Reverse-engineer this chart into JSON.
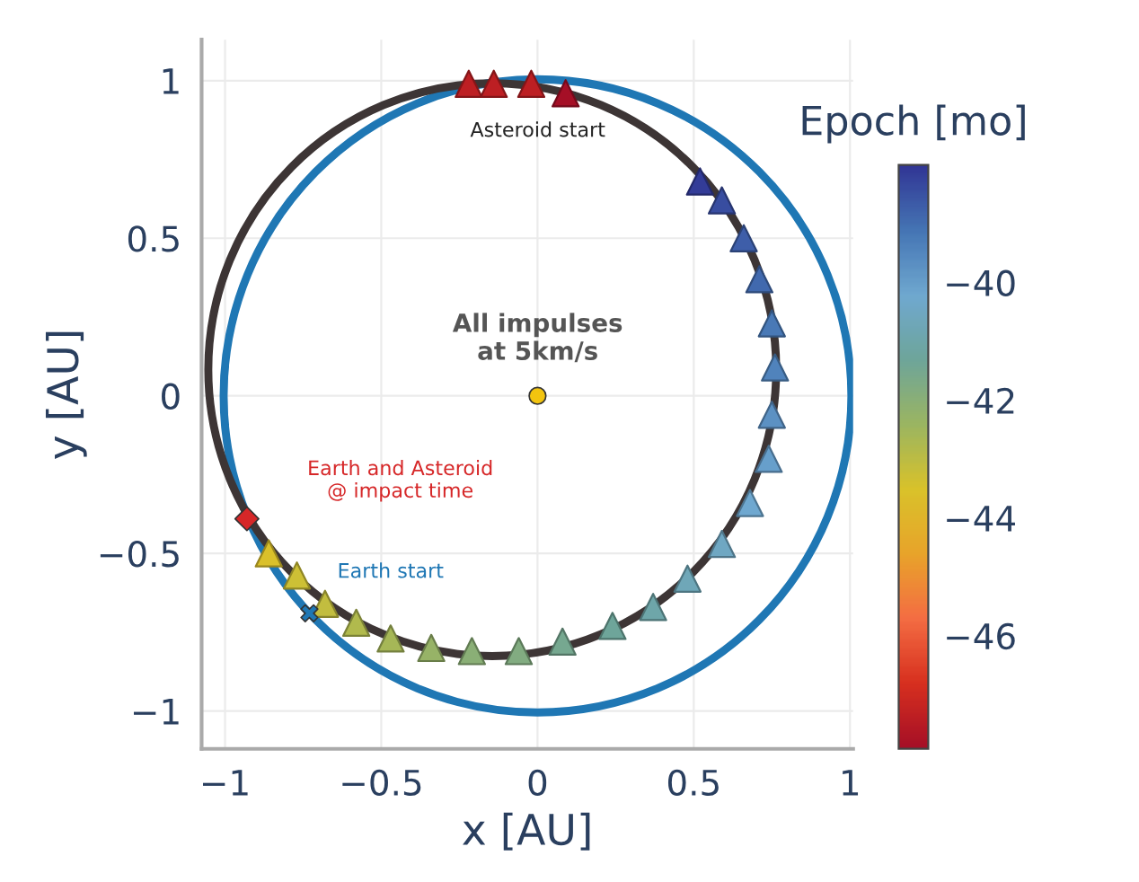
{
  "chart_data": {
    "type": "scatter",
    "xlabel": "x [AU]",
    "ylabel": "y [AU]",
    "clabel": "Epoch [mo]",
    "xlim": [
      -1.075,
      1.01
    ],
    "ylim": [
      -1.12,
      1.13
    ],
    "xticks": [
      {
        "value": -1,
        "label": "−1"
      },
      {
        "value": -0.5,
        "label": "−0.5"
      },
      0,
      0.5,
      1
    ],
    "yticks": [
      {
        "value": -1,
        "label": "−1"
      },
      {
        "value": -0.5,
        "label": "−0.5"
      },
      0,
      0.5,
      1
    ],
    "clim": [
      -47.92,
      -38.0
    ],
    "cticks": [
      {
        "value": -46,
        "label": "−46"
      },
      {
        "value": -44,
        "label": "−44"
      },
      {
        "value": -42,
        "label": "−42"
      },
      {
        "value": -40,
        "label": "−40"
      }
    ],
    "grid": true,
    "legend": false,
    "series": [
      {
        "type": "scatter",
        "marker": "triangle",
        "x": [
          -0.22,
          -0.14,
          -0.02,
          0.09,
          -0.86,
          -0.77,
          -0.68,
          -0.58,
          -0.47,
          -0.34,
          -0.21,
          -0.06,
          0.08,
          0.24,
          0.37,
          0.48,
          0.59,
          0.68,
          0.74,
          0.75,
          0.76,
          0.75,
          0.71,
          0.66,
          0.59,
          0.52
        ],
        "values": [
          0.99,
          0.99,
          0.99,
          0.96,
          -0.5,
          -0.57,
          -0.66,
          -0.72,
          -0.77,
          -0.8,
          -0.81,
          -0.81,
          -0.78,
          -0.73,
          -0.67,
          -0.58,
          -0.47,
          -0.34,
          -0.2,
          -0.06,
          0.09,
          0.23,
          0.37,
          0.5,
          0.62,
          0.68
        ],
        "cvalues": [
          -47.4,
          -47.4,
          -47.4,
          -47.9,
          -43.6,
          -43.3,
          -43.1,
          -42.8,
          -42.6,
          -42.3,
          -42.0,
          -41.8,
          -41.5,
          -41.3,
          -41.0,
          -40.7,
          -40.5,
          -40.2,
          -40.0,
          -39.7,
          -39.4,
          -39.2,
          -38.9,
          -38.7,
          -38.4,
          -38.1
        ],
        "colors": [
          "#bd1f23",
          "#bd1f23",
          "#bd1f23",
          "#a50f26",
          "#dac02a",
          "#cdc035",
          "#c2bd3f",
          "#b1ba4d",
          "#a6b757",
          "#97b367",
          "#8aaf76",
          "#82ac81",
          "#76a890",
          "#6ea59a",
          "#6ea6a9",
          "#6fa7b8",
          "#6fa7c2",
          "#6fa8d0",
          "#679fcb",
          "#5c91c3",
          "#5083bc",
          "#4979b6",
          "#4169ae",
          "#3e5ea9",
          "#384da0",
          "#333c98"
        ]
      },
      {
        "type": "scatter",
        "marker": "circle",
        "color": "#f2c40f",
        "x": [
          0
        ],
        "values": [
          0
        ]
      },
      {
        "type": "scatter",
        "marker": "cross",
        "color": "#1f77b4",
        "x": [
          -0.73
        ],
        "values": [
          -0.69
        ]
      },
      {
        "type": "scatter",
        "marker": "diamond",
        "color": "#d62728",
        "x": [
          -0.93
        ],
        "values": [
          -0.39
        ]
      }
    ],
    "annotations": [
      "Asteroid start",
      "All impulses\nat 5km/s",
      "Earth and Asteroid\n@ impact time",
      "Earth start"
    ]
  }
}
